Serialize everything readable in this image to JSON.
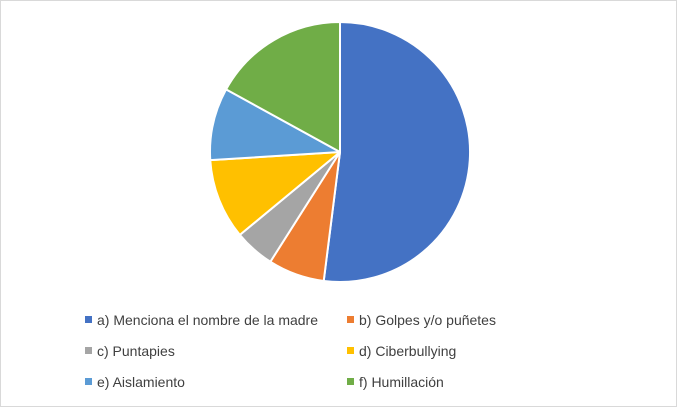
{
  "chart_data": {
    "type": "pie",
    "categories": [
      "a) Menciona el nombre de la madre",
      "b) Golpes y/o puñetes",
      "c) Puntapies",
      "d) Ciberbullying",
      "e) Aislamiento",
      "f) Humillación"
    ],
    "values": [
      52,
      7,
      5,
      10,
      9,
      17
    ],
    "colors": [
      "#4472C4",
      "#ED7D31",
      "#A5A5A5",
      "#FFC000",
      "#5B9BD5",
      "#70AD47"
    ],
    "title": "",
    "legend_position": "bottom",
    "start_angle_deg": 0,
    "direction": "clockwise"
  }
}
